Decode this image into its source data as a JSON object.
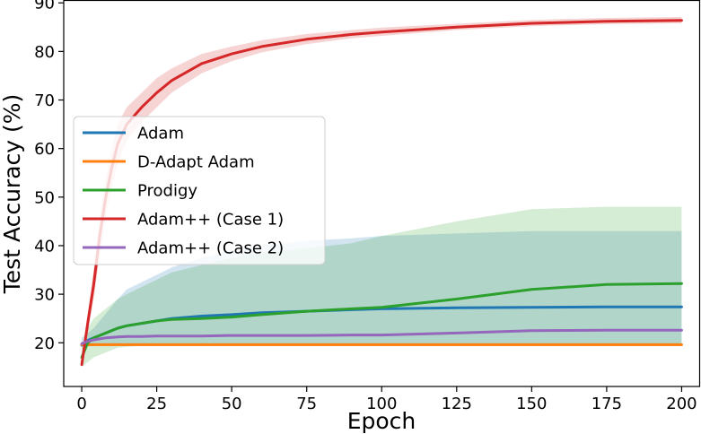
{
  "chart_data": {
    "type": "line",
    "xlabel": "Epoch",
    "ylabel": "Test Accuracy (%)",
    "xlim": [
      -6,
      206
    ],
    "ylim": [
      11,
      90.5
    ],
    "xticks": [
      0,
      25,
      50,
      75,
      100,
      125,
      150,
      175,
      200
    ],
    "yticks": [
      20,
      30,
      40,
      50,
      60,
      70,
      80,
      90
    ],
    "grid": false,
    "legend_position": "center-left",
    "x": [
      0,
      2,
      4,
      6,
      8,
      10,
      12,
      15,
      20,
      25,
      30,
      40,
      50,
      60,
      75,
      90,
      100,
      125,
      150,
      175,
      200
    ],
    "series": [
      {
        "name": "Adam",
        "color": "#1f77b4",
        "values": [
          19.5,
          20.5,
          21.0,
          21.5,
          22.0,
          22.5,
          23.0,
          23.5,
          24.0,
          24.5,
          25.0,
          25.5,
          25.8,
          26.2,
          26.5,
          26.8,
          27.0,
          27.2,
          27.3,
          27.4,
          27.4
        ],
        "band_lower": [
          19.3,
          19.3,
          19.4,
          19.4,
          19.4,
          19.5,
          19.5,
          19.5,
          19.5,
          19.5,
          19.5,
          19.5,
          19.5,
          19.5,
          19.5,
          19.5,
          19.5,
          19.5,
          19.5,
          19.5,
          19.5
        ],
        "band_upper": [
          21.0,
          22.0,
          23.0,
          24.5,
          26.0,
          27.5,
          29.0,
          31.0,
          32.5,
          34.0,
          35.5,
          37.5,
          39.0,
          40.0,
          41.0,
          41.5,
          42.0,
          42.5,
          43.0,
          43.0,
          43.0
        ]
      },
      {
        "name": "D-Adapt Adam",
        "color": "#ff7f0e",
        "values": [
          19.6,
          19.6,
          19.6,
          19.6,
          19.6,
          19.6,
          19.6,
          19.6,
          19.6,
          19.6,
          19.6,
          19.6,
          19.6,
          19.6,
          19.6,
          19.6,
          19.6,
          19.6,
          19.6,
          19.6,
          19.6
        ],
        "band_lower": [
          19.3,
          19.3,
          19.3,
          19.3,
          19.3,
          19.3,
          19.3,
          19.3,
          19.3,
          19.3,
          19.3,
          19.3,
          19.3,
          19.3,
          19.3,
          19.3,
          19.3,
          19.3,
          19.3,
          19.3,
          19.3
        ],
        "band_upper": [
          19.9,
          19.9,
          19.9,
          19.9,
          19.9,
          19.9,
          19.9,
          19.9,
          19.9,
          19.9,
          19.9,
          19.9,
          19.9,
          19.9,
          19.9,
          19.9,
          19.9,
          19.9,
          19.9,
          19.9,
          19.9
        ]
      },
      {
        "name": "Prodigy",
        "color": "#2ca02c",
        "values": [
          17.0,
          20.0,
          21.0,
          21.5,
          22.0,
          22.5,
          23.0,
          23.5,
          24.0,
          24.5,
          24.8,
          25.0,
          25.3,
          25.8,
          26.5,
          27.0,
          27.3,
          29.0,
          31.0,
          32.0,
          32.2
        ],
        "band_lower": [
          15.0,
          16.0,
          17.0,
          17.5,
          18.0,
          18.5,
          19.0,
          19.2,
          19.4,
          19.5,
          19.5,
          19.5,
          19.5,
          19.5,
          19.5,
          19.5,
          19.5,
          19.5,
          19.5,
          19.5,
          19.5
        ],
        "band_upper": [
          19.0,
          23.0,
          25.0,
          26.0,
          27.0,
          28.0,
          29.0,
          30.0,
          31.5,
          33.0,
          34.5,
          36.0,
          37.5,
          38.5,
          39.5,
          40.5,
          42.0,
          45.0,
          47.5,
          48.0,
          48.0
        ]
      },
      {
        "name": "Adam++ (Case 1)",
        "color": "#d62728",
        "values": [
          15.5,
          24.0,
          32.0,
          42.0,
          50.0,
          56.0,
          61.0,
          65.0,
          68.5,
          71.5,
          74.0,
          77.5,
          79.5,
          81.0,
          82.5,
          83.5,
          84.0,
          85.0,
          85.8,
          86.2,
          86.4
        ],
        "band_lower": [
          15.0,
          22.0,
          29.0,
          38.0,
          46.0,
          52.0,
          57.0,
          61.5,
          65.5,
          68.5,
          71.5,
          75.5,
          78.0,
          79.8,
          81.5,
          82.7,
          83.2,
          84.4,
          85.2,
          85.6,
          85.8
        ],
        "band_upper": [
          16.0,
          26.0,
          35.0,
          46.0,
          54.0,
          60.0,
          65.0,
          68.5,
          71.5,
          74.5,
          76.5,
          79.5,
          81.0,
          82.3,
          83.6,
          84.4,
          84.9,
          85.7,
          86.5,
          86.9,
          87.1
        ]
      },
      {
        "name": "Adam++ (Case 2)",
        "color": "#9467bd",
        "values": [
          19.8,
          20.3,
          20.6,
          20.8,
          21.0,
          21.1,
          21.2,
          21.3,
          21.3,
          21.4,
          21.4,
          21.4,
          21.5,
          21.5,
          21.5,
          21.6,
          21.6,
          22.0,
          22.5,
          22.6,
          22.6
        ]
      }
    ]
  }
}
